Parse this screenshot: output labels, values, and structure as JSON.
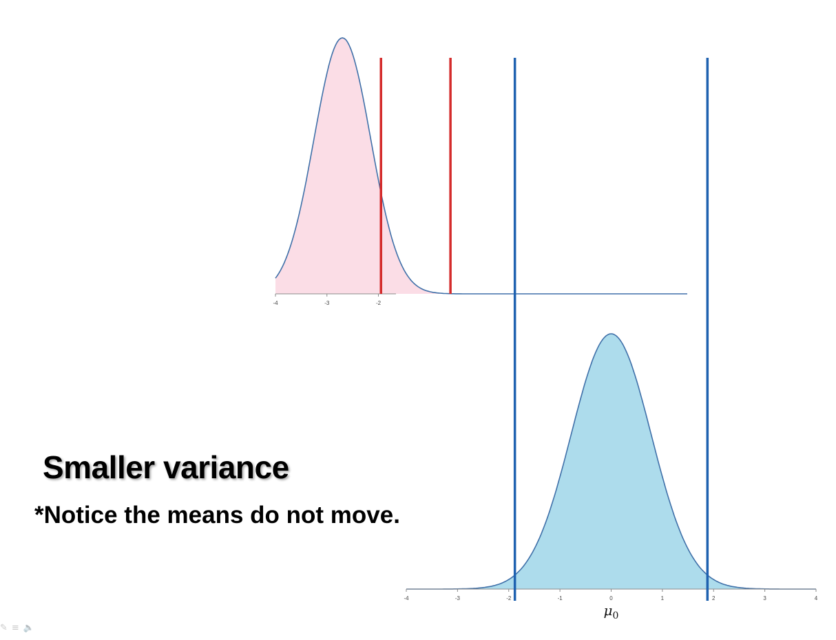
{
  "slide": {
    "title": "Smaller variance",
    "note": "*Notice the means do not move."
  },
  "controls": [
    {
      "name": "pen-icon",
      "glyph": "✎"
    },
    {
      "name": "menu-icon",
      "glyph": "≡"
    },
    {
      "name": "speaker-icon",
      "glyph": "🔈"
    }
  ],
  "colors": {
    "alternative_fill": "#fbdde6",
    "null_fill": "#addcec",
    "curve_stroke": "#3e6fa8",
    "alternative_bound": "#d42a2a",
    "null_bound": "#1f62b0"
  },
  "chart_data": [
    {
      "name": "alternative",
      "type": "area",
      "mean": -2.7,
      "sd": 0.55,
      "x_ticks": [
        "-4",
        "-3",
        "-2"
      ],
      "bounds": [
        -1.95,
        -0.6
      ],
      "fill": "#fbdde6"
    },
    {
      "name": "null",
      "type": "area",
      "mean": 0,
      "sd": 0.78,
      "mean_label": "μ0",
      "x_ticks": [
        "-4",
        "-3",
        "-2",
        "-1",
        "0",
        "1",
        "2",
        "3",
        "4"
      ],
      "bounds": [
        -1.88,
        1.88
      ],
      "fill": "#addcec"
    }
  ]
}
